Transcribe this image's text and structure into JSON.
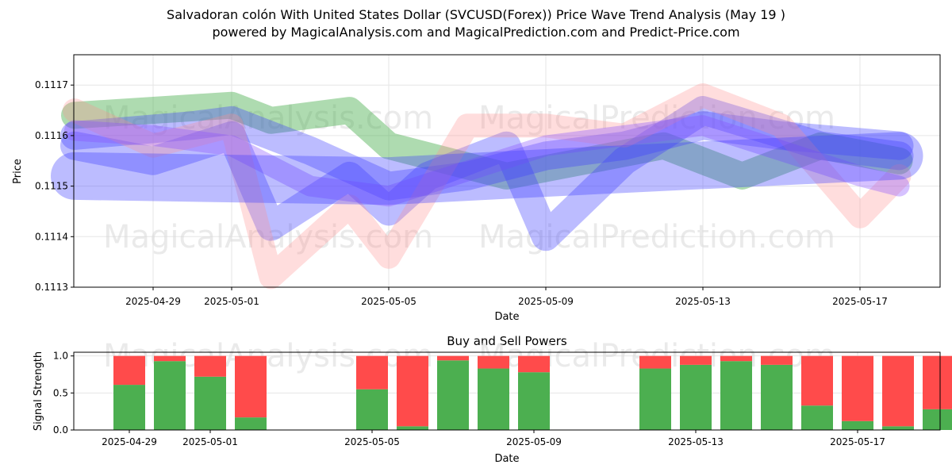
{
  "title": "Salvadoran colón With United States Dollar (SVCUSD(Forex)) Price Wave Trend Analysis (May 19 )",
  "subtitle": "powered by MagicalAnalysis.com and MagicalPrediction.com and Predict-Price.com",
  "watermarks": [
    "MagicalAnalysis.com",
    "MagicalPrediction.com"
  ],
  "colors": {
    "buy": "#4caf50",
    "sell": "#ff4b4b",
    "band_blue": "#4040ff",
    "band_green": "#4caf50",
    "band_red": "#ff9090",
    "band_purple": "#8a4fff"
  },
  "chart_data": [
    {
      "type": "line",
      "title": "",
      "xlabel": "Date",
      "ylabel": "Price",
      "x_ticks": [
        "2025-04-29",
        "2025-05-01",
        "2025-05-05",
        "2025-05-09",
        "2025-05-13",
        "2025-05-17"
      ],
      "y_ticks": [
        "0.1113",
        "0.1114",
        "0.1115",
        "0.1116",
        "0.1117"
      ],
      "ylim": [
        0.1113,
        0.11176
      ],
      "xlim": [
        "2025-04-26",
        "2025-05-19"
      ],
      "grid": true,
      "series": [
        {
          "color": "green",
          "x": [
            "2025-04-27",
            "2025-05-01",
            "2025-05-02",
            "2025-05-04",
            "2025-05-05",
            "2025-05-08",
            "2025-05-12",
            "2025-05-14",
            "2025-05-16",
            "2025-05-18"
          ],
          "values": [
            0.11164,
            0.11166,
            0.11163,
            0.11165,
            0.11158,
            0.11152,
            0.11158,
            0.11152,
            0.11158,
            0.11155
          ]
        },
        {
          "color": "blue",
          "x": [
            "2025-04-27",
            "2025-04-30",
            "2025-05-01",
            "2025-05-03",
            "2025-05-05",
            "2025-05-07",
            "2025-05-09",
            "2025-05-11",
            "2025-05-13",
            "2025-05-15",
            "2025-05-18"
          ],
          "values": [
            0.1116,
            0.11162,
            0.11163,
            0.11157,
            0.1115,
            0.11152,
            0.11156,
            0.11158,
            0.11162,
            0.1116,
            0.11158
          ]
        },
        {
          "color": "blue",
          "x": [
            "2025-04-27",
            "2025-04-29",
            "2025-05-01",
            "2025-05-02",
            "2025-05-04",
            "2025-05-05",
            "2025-05-06",
            "2025-05-08",
            "2025-05-09",
            "2025-05-11",
            "2025-05-13",
            "2025-05-16",
            "2025-05-18"
          ],
          "values": [
            0.11158,
            0.11155,
            0.1116,
            0.11142,
            0.11152,
            0.11145,
            0.11152,
            0.11158,
            0.1114,
            0.11155,
            0.11165,
            0.11158,
            0.11156
          ]
        },
        {
          "color": "red",
          "x": [
            "2025-04-27",
            "2025-04-29",
            "2025-05-01",
            "2025-05-02",
            "2025-05-04",
            "2025-05-05",
            "2025-05-07",
            "2025-05-09",
            "2025-05-11",
            "2025-05-13",
            "2025-05-15",
            "2025-05-17",
            "2025-05-18"
          ],
          "values": [
            0.11165,
            0.11158,
            0.11162,
            0.11132,
            0.11146,
            0.11136,
            0.11162,
            0.11162,
            0.1116,
            0.11168,
            0.11162,
            0.11144,
            0.11152
          ]
        },
        {
          "color": "purple",
          "x": [
            "2025-04-27",
            "2025-04-29",
            "2025-05-01",
            "2025-05-03",
            "2025-05-05",
            "2025-05-07",
            "2025-05-09",
            "2025-05-11",
            "2025-05-13",
            "2025-05-15",
            "2025-05-17",
            "2025-05-18"
          ],
          "values": [
            0.11161,
            0.1116,
            0.11158,
            0.1115,
            0.11148,
            0.11153,
            0.11158,
            0.1116,
            0.11162,
            0.11157,
            0.11152,
            0.1115
          ]
        },
        {
          "color": "blue",
          "x": [
            "2025-04-27",
            "2025-05-05",
            "2025-05-10",
            "2025-05-18"
          ],
          "values": [
            0.11152,
            0.11151,
            0.11153,
            0.11156
          ]
        }
      ]
    },
    {
      "type": "bar",
      "title": "Buy and Sell Powers",
      "xlabel": "Date",
      "ylabel": "Signal Strength",
      "x_ticks": [
        "2025-04-29",
        "2025-05-01",
        "2025-05-05",
        "2025-05-09",
        "2025-05-13",
        "2025-05-17"
      ],
      "y_ticks": [
        "0.0",
        "0.5",
        "1.0"
      ],
      "ylim": [
        0,
        1.05
      ],
      "categories": [
        "2025-04-29",
        "2025-04-30",
        "2025-05-01",
        "2025-05-02",
        "2025-05-05",
        "2025-05-06",
        "2025-05-07",
        "2025-05-08",
        "2025-05-09",
        "2025-05-12",
        "2025-05-13",
        "2025-05-14",
        "2025-05-15",
        "2025-05-16",
        "2025-05-17",
        "2025-05-18",
        "2025-05-19"
      ],
      "series": [
        {
          "name": "Buy",
          "values": [
            0.61,
            0.93,
            0.72,
            0.17,
            0.55,
            0.05,
            0.94,
            0.83,
            0.78,
            0.83,
            0.88,
            0.93,
            0.88,
            0.33,
            0.12,
            0.05,
            0.28
          ]
        },
        {
          "name": "Sell",
          "values": [
            0.39,
            0.07,
            0.28,
            0.83,
            0.45,
            0.95,
            0.06,
            0.17,
            0.22,
            0.17,
            0.12,
            0.07,
            0.12,
            0.67,
            0.88,
            0.95,
            0.72
          ]
        }
      ],
      "bar_dates_note": ""
    }
  ]
}
